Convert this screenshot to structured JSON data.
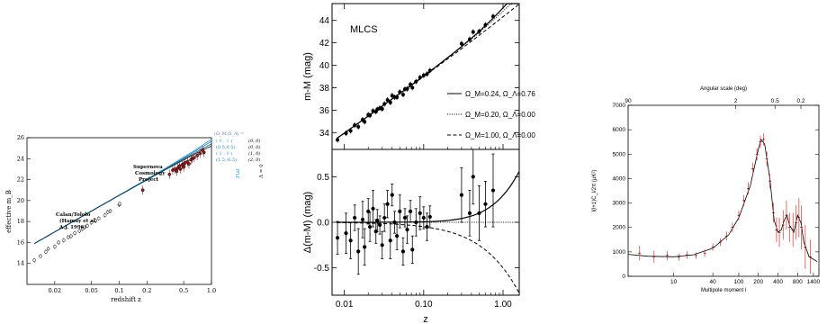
{
  "chart_data": [
    {
      "type": "scatter",
      "ylabel": "effective m_B",
      "xlabel": "redshift z",
      "xscale": "log",
      "xlim": [
        0.01,
        1.0
      ],
      "ylim": [
        12,
        26
      ],
      "xticks": [
        "0.02",
        "0.05",
        "0.1",
        "0.2",
        "0.5",
        "1.0"
      ],
      "yticks": [
        "14",
        "16",
        "18",
        "20",
        "22",
        "24",
        "26"
      ],
      "annotations": {
        "calan_line1": "Calan/Tololo",
        "calan_line2": "(Hamuy et al,",
        "calan_line3": "A.J. 1996)",
        "scp_line1": "Supernova",
        "scp_line2": "Cosmology",
        "scp_line3": "Project"
      },
      "legend": {
        "header": "(Ω_M,Ω_Λ) =",
        "entries": [
          {
            "params": "( 0 , 1 )",
            "alt": "(0, 0)"
          },
          {
            "params": "(0.5,0.5)",
            "alt": "(0, 0)"
          },
          {
            "params": "( 1 , 0 )",
            "alt": "(1, 0)"
          },
          {
            "params": "(1.5,-0.5)",
            "alt": "(2, 0)"
          }
        ],
        "flat_label": "Flat",
        "lambda_label": "Λ = 0"
      },
      "series": [
        {
          "values": [
            [
              0.012,
              14.3
            ],
            [
              0.014,
              14.7
            ],
            [
              0.016,
              15.1
            ],
            [
              0.017,
              15.4
            ],
            [
              0.02,
              15.6
            ],
            [
              0.022,
              16.0
            ],
            [
              0.025,
              16.2
            ],
            [
              0.028,
              16.5
            ],
            [
              0.03,
              16.6
            ],
            [
              0.033,
              16.9
            ],
            [
              0.037,
              17.1
            ],
            [
              0.04,
              17.3
            ],
            [
              0.045,
              17.6
            ],
            [
              0.05,
              17.9
            ],
            [
              0.055,
              18.1
            ],
            [
              0.06,
              18.3
            ],
            [
              0.07,
              18.6
            ],
            [
              0.075,
              18.9
            ],
            [
              0.08,
              19.0
            ],
            [
              0.1,
              19.6
            ],
            [
              0.101,
              19.7
            ]
          ]
        },
        {
          "values": [
            [
              0.18,
              21.0
            ],
            [
              0.35,
              22.5
            ],
            [
              0.38,
              22.9
            ],
            [
              0.4,
              23.0
            ],
            [
              0.42,
              22.8
            ],
            [
              0.43,
              23.1
            ],
            [
              0.45,
              23.3
            ],
            [
              0.46,
              23.0
            ],
            [
              0.48,
              23.4
            ],
            [
              0.5,
              23.5
            ],
            [
              0.5,
              23.2
            ],
            [
              0.52,
              23.6
            ],
            [
              0.55,
              23.7
            ],
            [
              0.57,
              23.5
            ],
            [
              0.6,
              23.9
            ],
            [
              0.62,
              24.0
            ],
            [
              0.65,
              24.1
            ],
            [
              0.7,
              24.3
            ],
            [
              0.75,
              24.5
            ],
            [
              0.8,
              24.8
            ],
            [
              0.83,
              24.6
            ]
          ]
        }
      ],
      "curve_colors": [
        "#3da5d9",
        "#2f86b3",
        "#1f5b7a",
        "#123a52"
      ]
    },
    {
      "type": "scatter",
      "title": "MLCS",
      "ylabel_top": "m-M (mag)",
      "ylabel_bottom": "Δ(m-M) (mag)",
      "xlabel": "z",
      "xscale": "log",
      "xlim": [
        0.007,
        1.6
      ],
      "ylim_top": [
        32.5,
        45.5
      ],
      "ylim_bottom": [
        -0.8,
        0.8
      ],
      "xticks": [
        "0.01",
        "0.10",
        "1.00"
      ],
      "yticks_top": [
        "34",
        "36",
        "38",
        "40",
        "42",
        "44"
      ],
      "yticks_bottom": [
        "-0.5",
        "0.0",
        "0.5"
      ],
      "legend": [
        {
          "label": "Ω_M=0.24, Ω_Λ=0.76",
          "style": "solid"
        },
        {
          "label": "Ω_M=0.20, Ω_Λ=0.00",
          "style": "dotted"
        },
        {
          "label": "Ω_M=1.00, Ω_Λ=0.00",
          "style": "dashed"
        }
      ],
      "residuals": [
        {
          "z": 0.0082,
          "dm": -0.17,
          "err": 0.18
        },
        {
          "z": 0.0105,
          "dm": -0.12,
          "err": 0.22
        },
        {
          "z": 0.012,
          "dm": -0.2,
          "err": 0.2
        },
        {
          "z": 0.0135,
          "dm": 0.05,
          "err": 0.14
        },
        {
          "z": 0.015,
          "dm": -0.32,
          "err": 0.25
        },
        {
          "z": 0.017,
          "dm": 0.03,
          "err": 0.2
        },
        {
          "z": 0.018,
          "dm": -0.27,
          "err": 0.2
        },
        {
          "z": 0.02,
          "dm": 0.12,
          "err": 0.14
        },
        {
          "z": 0.021,
          "dm": -0.05,
          "err": 0.16
        },
        {
          "z": 0.023,
          "dm": 0.15,
          "err": 0.2
        },
        {
          "z": 0.025,
          "dm": -0.1,
          "err": 0.13
        },
        {
          "z": 0.026,
          "dm": 0.02,
          "err": 0.12
        },
        {
          "z": 0.028,
          "dm": -0.03,
          "err": 0.1
        },
        {
          "z": 0.03,
          "dm": -0.25,
          "err": 0.15
        },
        {
          "z": 0.032,
          "dm": 0.05,
          "err": 0.15
        },
        {
          "z": 0.035,
          "dm": 0.2,
          "err": 0.15
        },
        {
          "z": 0.038,
          "dm": -0.2,
          "err": 0.2
        },
        {
          "z": 0.04,
          "dm": 0.3,
          "err": 0.12
        },
        {
          "z": 0.043,
          "dm": 0.0,
          "err": 0.12
        },
        {
          "z": 0.046,
          "dm": -0.15,
          "err": 0.15
        },
        {
          "z": 0.05,
          "dm": 0.12,
          "err": 0.18
        },
        {
          "z": 0.055,
          "dm": -0.32,
          "err": 0.15
        },
        {
          "z": 0.058,
          "dm": 0.05,
          "err": 0.1
        },
        {
          "z": 0.062,
          "dm": -0.08,
          "err": 0.15
        },
        {
          "z": 0.068,
          "dm": 0.12,
          "err": 0.12
        },
        {
          "z": 0.072,
          "dm": -0.3,
          "err": 0.15
        },
        {
          "z": 0.08,
          "dm": 0.0,
          "err": 0.15
        },
        {
          "z": 0.09,
          "dm": 0.1,
          "err": 0.18
        },
        {
          "z": 0.1,
          "dm": 0.05,
          "err": 0.12
        },
        {
          "z": 0.11,
          "dm": -0.05,
          "err": 0.15
        },
        {
          "z": 0.12,
          "dm": 0.06,
          "err": 0.12
        },
        {
          "z": 0.3,
          "dm": 0.3,
          "err": 0.3
        },
        {
          "z": 0.38,
          "dm": 0.1,
          "err": 0.25
        },
        {
          "z": 0.42,
          "dm": 0.5,
          "err": 0.3
        },
        {
          "z": 0.5,
          "dm": 0.1,
          "err": 0.3
        },
        {
          "z": 0.6,
          "dm": 0.2,
          "err": 0.25
        },
        {
          "z": 0.75,
          "dm": 0.35,
          "err": 0.4
        }
      ]
    },
    {
      "type": "line",
      "xlabel": "Multipole moment l",
      "ylabel": "l(l+1)C_l/2π (μK²)",
      "top_axis_label": "Angular scale (deg)",
      "top_ticks": [
        "90",
        "2",
        "0.5",
        "0.2"
      ],
      "xticks": [
        "10",
        "40",
        "100",
        "200",
        "400",
        "800",
        "1400"
      ],
      "yticks": [
        "0",
        "1000",
        "2000",
        "3000",
        "4000",
        "5000",
        "6000",
        "7000"
      ],
      "ylim": [
        0,
        7000
      ],
      "xlim": [
        2,
        1700
      ],
      "model": [
        [
          2,
          900
        ],
        [
          4,
          820
        ],
        [
          10,
          800
        ],
        [
          20,
          880
        ],
        [
          40,
          1150
        ],
        [
          70,
          1700
        ],
        [
          100,
          2400
        ],
        [
          150,
          3700
        ],
        [
          200,
          5200
        ],
        [
          220,
          5600
        ],
        [
          250,
          5400
        ],
        [
          300,
          4000
        ],
        [
          350,
          2300
        ],
        [
          400,
          1800
        ],
        [
          450,
          1900
        ],
        [
          500,
          2300
        ],
        [
          550,
          2500
        ],
        [
          600,
          2100
        ],
        [
          700,
          1800
        ],
        [
          800,
          2500
        ],
        [
          900,
          2200
        ],
        [
          1000,
          1400
        ],
        [
          1200,
          800
        ],
        [
          1400,
          700
        ],
        [
          1600,
          600
        ]
      ],
      "data": [
        {
          "l": 3,
          "v": 950,
          "err": 300
        },
        {
          "l": 5,
          "v": 800,
          "err": 250
        },
        {
          "l": 8,
          "v": 850,
          "err": 180
        },
        {
          "l": 12,
          "v": 780,
          "err": 150
        },
        {
          "l": 16,
          "v": 870,
          "err": 150
        },
        {
          "l": 22,
          "v": 850,
          "err": 130
        },
        {
          "l": 30,
          "v": 950,
          "err": 140
        },
        {
          "l": 40,
          "v": 1200,
          "err": 150
        },
        {
          "l": 52,
          "v": 1400,
          "err": 150
        },
        {
          "l": 65,
          "v": 1650,
          "err": 180
        },
        {
          "l": 80,
          "v": 2000,
          "err": 200
        },
        {
          "l": 100,
          "v": 2500,
          "err": 200
        },
        {
          "l": 120,
          "v": 3100,
          "err": 220
        },
        {
          "l": 140,
          "v": 3600,
          "err": 250
        },
        {
          "l": 165,
          "v": 4400,
          "err": 250
        },
        {
          "l": 190,
          "v": 5000,
          "err": 250
        },
        {
          "l": 215,
          "v": 5500,
          "err": 250
        },
        {
          "l": 240,
          "v": 5600,
          "err": 250
        },
        {
          "l": 270,
          "v": 4800,
          "err": 300
        },
        {
          "l": 300,
          "v": 3900,
          "err": 300
        },
        {
          "l": 340,
          "v": 2600,
          "err": 400
        },
        {
          "l": 380,
          "v": 1900,
          "err": 500
        },
        {
          "l": 420,
          "v": 1800,
          "err": 600
        },
        {
          "l": 480,
          "v": 2100,
          "err": 600
        },
        {
          "l": 540,
          "v": 2500,
          "err": 600
        },
        {
          "l": 600,
          "v": 2000,
          "err": 600
        },
        {
          "l": 680,
          "v": 1900,
          "err": 700
        },
        {
          "l": 760,
          "v": 2200,
          "err": 700
        },
        {
          "l": 840,
          "v": 2400,
          "err": 800
        },
        {
          "l": 920,
          "v": 2000,
          "err": 900
        },
        {
          "l": 1050,
          "v": 1200,
          "err": 900
        },
        {
          "l": 1250,
          "v": 800,
          "err": 700
        }
      ],
      "error_color": "#d0302a"
    }
  ]
}
